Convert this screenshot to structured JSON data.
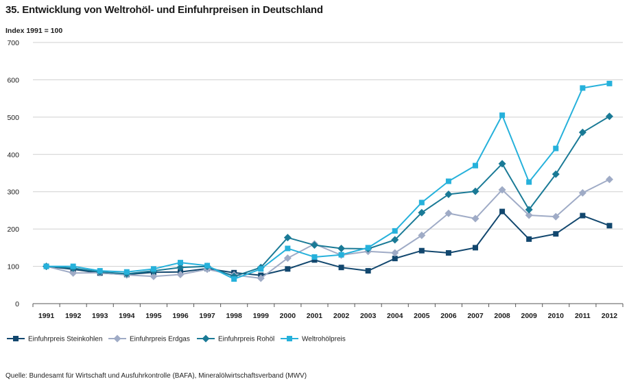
{
  "chart_data": {
    "type": "line",
    "title": "35. Entwicklung von Weltrohöl- und Einfuhrpreisen in Deutschland",
    "ylabel": "Index 1991 = 100",
    "xlabel": "",
    "ylim": [
      0,
      700
    ],
    "yticks": [
      0,
      100,
      200,
      300,
      400,
      500,
      600,
      700
    ],
    "grid": true,
    "legend_position": "bottom",
    "categories": [
      "1991",
      "1992",
      "1993",
      "1994",
      "1995",
      "1996",
      "1997",
      "1998",
      "1999",
      "2000",
      "2001",
      "2002",
      "2003",
      "2004",
      "2005",
      "2006",
      "2007",
      "2008",
      "2009",
      "2010",
      "2011",
      "2012"
    ],
    "series": [
      {
        "name": "Einfuhrpreis Steinkohlen",
        "color": "#12476e",
        "marker": "square",
        "values": [
          100,
          92,
          82,
          78,
          84,
          85,
          94,
          83,
          76,
          93,
          117,
          97,
          88,
          121,
          142,
          136,
          150,
          247,
          173,
          187,
          236,
          209
        ]
      },
      {
        "name": "Einfuhrpreis Erdgas",
        "color": "#9fabc6",
        "marker": "diamond",
        "values": [
          100,
          82,
          83,
          77,
          73,
          78,
          92,
          77,
          68,
          122,
          160,
          130,
          140,
          136,
          183,
          242,
          228,
          305,
          237,
          233,
          297,
          333
        ]
      },
      {
        "name": "Einfuhrpreis Rohöl",
        "color": "#1a7a96",
        "marker": "diamond",
        "values": [
          100,
          95,
          85,
          80,
          88,
          97,
          100,
          73,
          97,
          177,
          157,
          148,
          147,
          171,
          244,
          293,
          301,
          375,
          252,
          347,
          459,
          502
        ]
      },
      {
        "name": "Weltrohölpreis",
        "color": "#26b1db",
        "marker": "square",
        "values": [
          100,
          100,
          88,
          85,
          93,
          110,
          102,
          66,
          93,
          148,
          125,
          131,
          150,
          195,
          271,
          328,
          370,
          505,
          326,
          416,
          578,
          590
        ]
      }
    ]
  },
  "source": "Quelle: Bundesamt für Wirtschaft und Ausfuhrkontrolle (BAFA), Mineralölwirtschaftsverband (MWV)"
}
